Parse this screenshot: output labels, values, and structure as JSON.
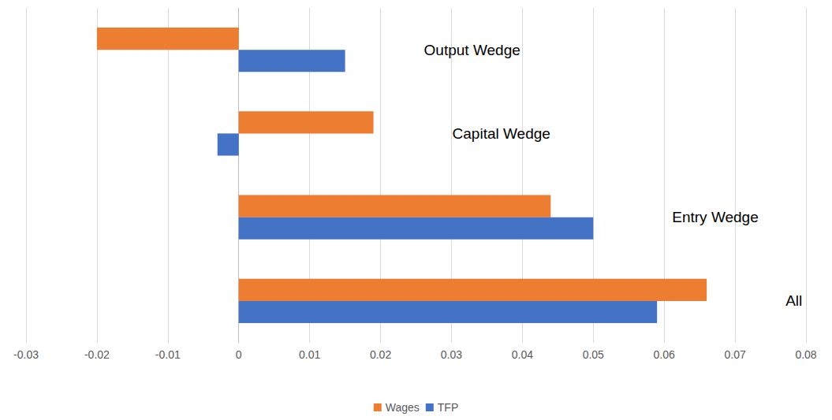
{
  "chart_data": {
    "type": "bar",
    "orientation": "horizontal",
    "categories": [
      "Output Wedge",
      "Capital Wedge",
      "Entry Wedge",
      "All"
    ],
    "series": [
      {
        "name": "Wages",
        "color": "#ed7d31",
        "values": [
          -0.02,
          0.019,
          0.044,
          0.066
        ]
      },
      {
        "name": "TFP",
        "color": "#4472c4",
        "values": [
          0.015,
          -0.003,
          0.05,
          0.059
        ]
      }
    ],
    "xlim": [
      -0.03,
      0.08
    ],
    "xticks": [
      -0.03,
      -0.02,
      -0.01,
      0,
      0.01,
      0.02,
      0.03,
      0.04,
      0.05,
      0.06,
      0.07,
      0.08
    ],
    "grid": true,
    "legend": "bottom",
    "tick_labels": "x"
  }
}
